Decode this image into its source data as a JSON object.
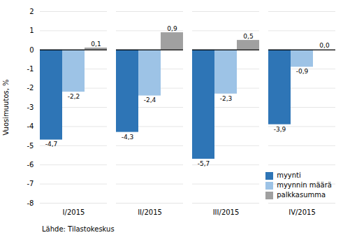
{
  "chart_data": {
    "type": "bar",
    "categories": [
      "I/2015",
      "II/2015",
      "III/2015",
      "IV/2015"
    ],
    "series": [
      {
        "name": "myynti",
        "color": "#2E75B6",
        "values": [
          -4.7,
          -4.3,
          -5.7,
          -3.9
        ],
        "value_labels": [
          "-4,7",
          "-4,3",
          "-5,7",
          "-3,9"
        ]
      },
      {
        "name": "myynnin määrä",
        "color": "#9DC3E6",
        "values": [
          -2.2,
          -2.4,
          -2.3,
          -0.9
        ],
        "value_labels": [
          "-2,2",
          "-2,4",
          "-2,3",
          "-0,9"
        ]
      },
      {
        "name": "palkkasumma",
        "color": "#A0A0A0",
        "values": [
          0.1,
          0.9,
          0.5,
          0.0
        ],
        "value_labels": [
          "0,1",
          "0,9",
          "0,5",
          "0,0"
        ]
      }
    ],
    "ylabel": "Vuosimuutos, %",
    "ylim": [
      -8,
      2
    ],
    "yticks": [
      -8,
      -7,
      -6,
      -5,
      -4,
      -3,
      -2,
      -1,
      0,
      1,
      2
    ],
    "grid": true,
    "legend": "lower right",
    "data_labels": true,
    "annotations": [
      "Lähde: Tilastokeskus"
    ]
  }
}
